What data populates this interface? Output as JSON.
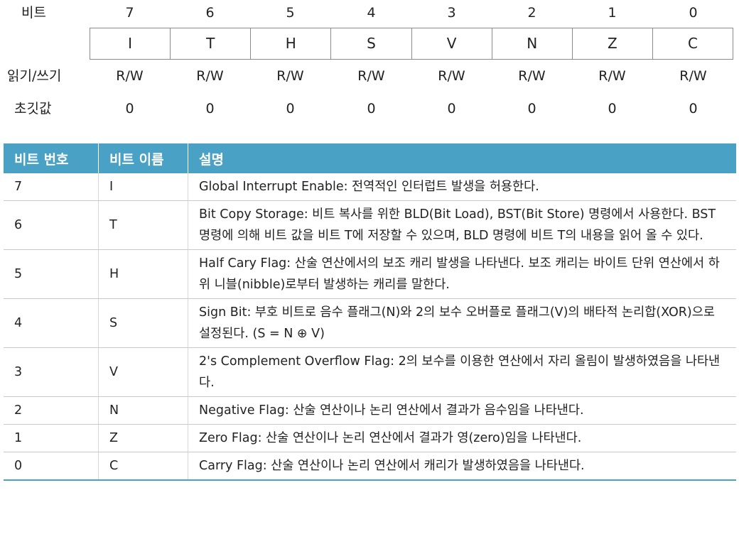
{
  "register": {
    "label_bit": "비트",
    "label_rw": "읽기/쓰기",
    "label_init": "초깃값",
    "bits": [
      "7",
      "6",
      "5",
      "4",
      "3",
      "2",
      "1",
      "0"
    ],
    "names": [
      "I",
      "T",
      "H",
      "S",
      "V",
      "N",
      "Z",
      "C"
    ],
    "rw": [
      "R/W",
      "R/W",
      "R/W",
      "R/W",
      "R/W",
      "R/W",
      "R/W",
      "R/W"
    ],
    "init": [
      "0",
      "0",
      "0",
      "0",
      "0",
      "0",
      "0",
      "0"
    ]
  },
  "table": {
    "headers": [
      "비트 번호",
      "비트 이름",
      "설명"
    ],
    "rows": [
      {
        "num": "7",
        "name": "I",
        "desc": "Global Interrupt Enable: 전역적인 인터럽트 발생을 허용한다."
      },
      {
        "num": "6",
        "name": "T",
        "desc": "Bit Copy Storage: 비트 복사를 위한 BLD(Bit Load), BST(Bit Store) 명령에서 사용한다. BST 명령에 의해 비트 값을 비트 T에 저장할 수 있으며, BLD 명령에 비트 T의 내용을 읽어 올 수 있다."
      },
      {
        "num": "5",
        "name": "H",
        "desc": "Half Cary Flag: 산술 연산에서의 보조 캐리 발생을 나타낸다. 보조 캐리는 바이트 단위 연산에서 하위 니블(nibble)로부터 발생하는 캐리를 말한다."
      },
      {
        "num": "4",
        "name": "S",
        "desc": "Sign Bit: 부호 비트로 음수 플래그(N)와 2의 보수 오버플로 플래그(V)의 배타적 논리합(XOR)으로 설정된다. (S = N ⊕ V)"
      },
      {
        "num": "3",
        "name": "V",
        "desc": "2's Complement Overflow Flag: 2의 보수를 이용한 연산에서 자리 올림이 발생하였음을 나타낸다."
      },
      {
        "num": "2",
        "name": "N",
        "desc": "Negative Flag: 산술 연산이나 논리 연산에서 결과가 음수임을 나타낸다."
      },
      {
        "num": "1",
        "name": "Z",
        "desc": "Zero Flag: 산술 연산이나 논리 연산에서 결과가 영(zero)임을 나타낸다."
      },
      {
        "num": "0",
        "name": "C",
        "desc": "Carry Flag: 산술 연산이나 논리 연산에서 캐리가 발생하였음을 나타낸다."
      }
    ]
  }
}
